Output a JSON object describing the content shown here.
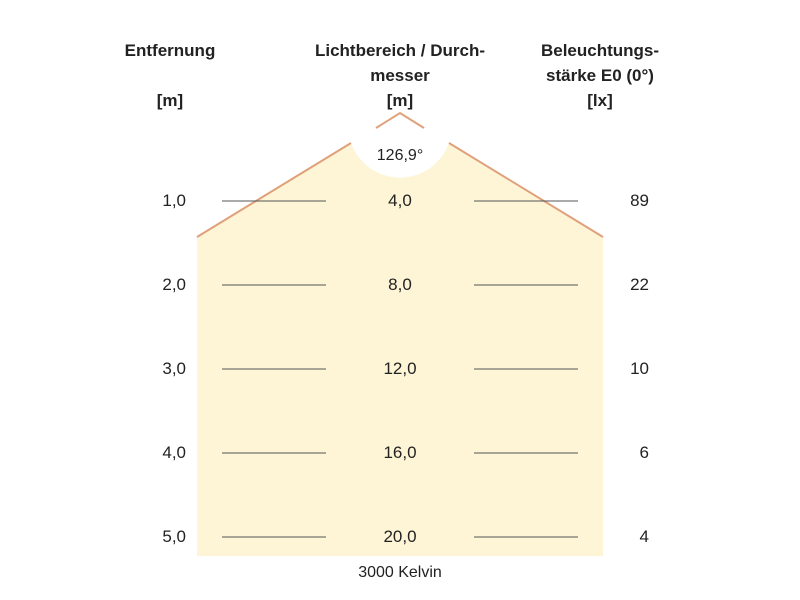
{
  "headers": {
    "distance": {
      "line1": "Entfernung",
      "unit": "[m]"
    },
    "beam": {
      "line1": "Lichtbereich / Durch-",
      "line2": "messer",
      "unit": "[m]"
    },
    "illuminance": {
      "line1": "Beleuchtungs-",
      "line2": "stärke E0 (0°)",
      "unit": "[lx]"
    }
  },
  "beam_angle": "126,9°",
  "rows": [
    {
      "distance": "1,0",
      "diameter": "4,0",
      "lux": "89"
    },
    {
      "distance": "2,0",
      "diameter": "8,0",
      "lux": "22"
    },
    {
      "distance": "3,0",
      "diameter": "12,0",
      "lux": "10"
    },
    {
      "distance": "4,0",
      "diameter": "16,0",
      "lux": "6"
    },
    {
      "distance": "5,0",
      "diameter": "20,0",
      "lux": "4"
    }
  ],
  "color_temperature": "3000 Kelvin",
  "colors": {
    "light_fill": "#fdf5d6",
    "beam_edge": "#e0a07a",
    "guide_line": "#555555"
  }
}
